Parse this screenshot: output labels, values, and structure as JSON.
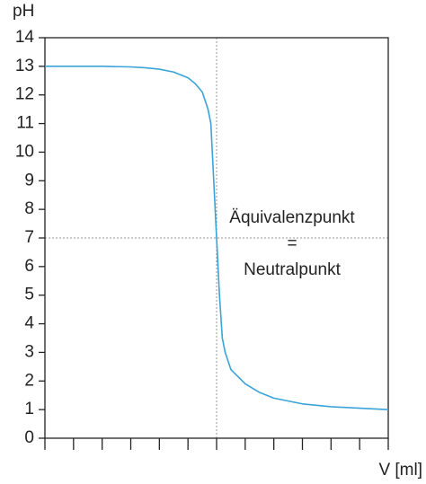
{
  "chart_data": {
    "type": "line",
    "xlabel": "V [ml]",
    "ylabel": "pH",
    "x": [
      0,
      1,
      2,
      3,
      3.5,
      4,
      4.5,
      5,
      5.25,
      5.5,
      5.7,
      5.8,
      5.9,
      6,
      6.1,
      6.2,
      6.3,
      6.5,
      7,
      7.5,
      8,
      9,
      10,
      11,
      12
    ],
    "series": [
      {
        "color": "#3aa3d8",
        "values": [
          13,
          13,
          13,
          12.98,
          12.95,
          12.9,
          12.8,
          12.6,
          12.4,
          12.1,
          11.5,
          11,
          9,
          7,
          5,
          3.5,
          3,
          2.4,
          1.9,
          1.6,
          1.4,
          1.2,
          1.1,
          1.05,
          1.0
        ]
      }
    ],
    "xlim": [
      0,
      12
    ],
    "xticks": [
      0,
      1,
      2,
      3,
      4,
      5,
      6,
      7,
      8,
      9,
      10,
      11,
      12
    ],
    "ylim": [
      0,
      14
    ],
    "yticks": [
      0,
      1,
      2,
      3,
      4,
      5,
      6,
      7,
      8,
      9,
      10,
      11,
      12,
      13,
      14
    ],
    "reference_lines": {
      "x": 6,
      "y": 7
    },
    "annotation": [
      "Äquivalenzpunkt",
      "=",
      "Neutralpunkt"
    ]
  }
}
